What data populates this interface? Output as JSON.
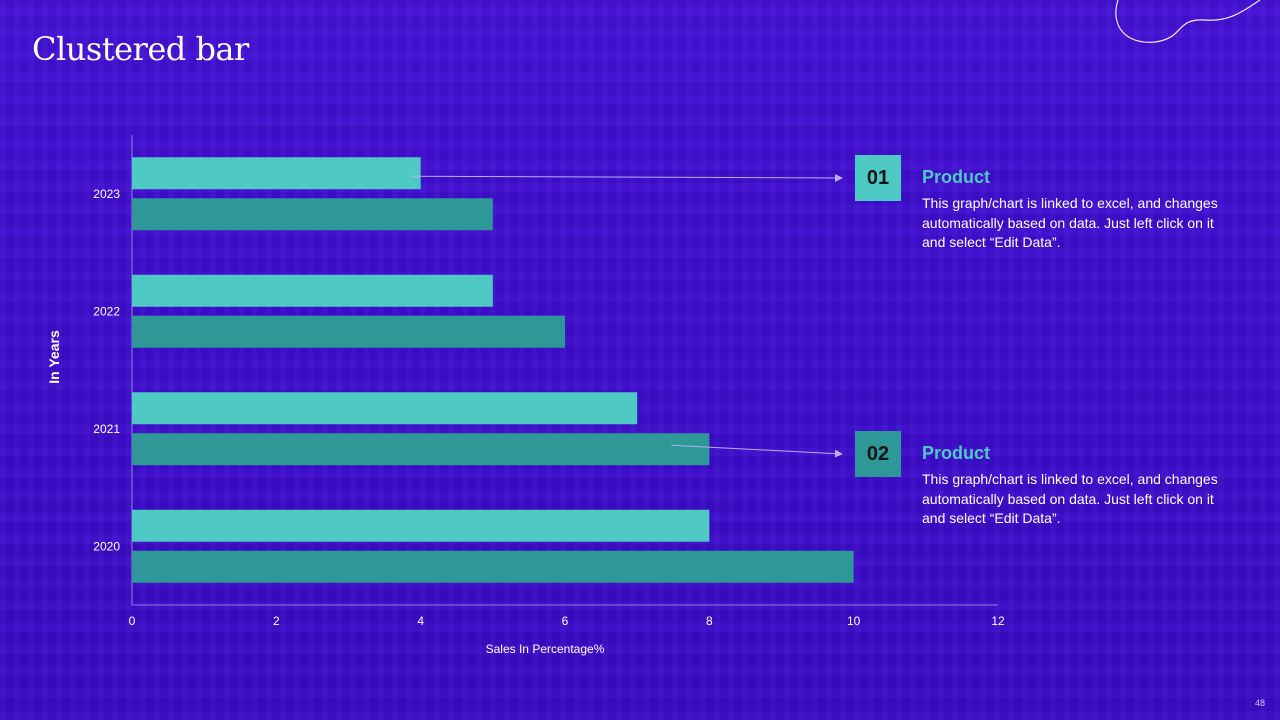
{
  "slide": {
    "title": "Clustered bar",
    "page_number": "48"
  },
  "colors": {
    "background": "#3d0ccf",
    "series_1": "#4ec9c3",
    "series_2": "#2e9898",
    "badge_1": "#4ec9c3",
    "badge_2": "#2e9898",
    "card_title": "#4ec9c3"
  },
  "chart_data": {
    "type": "bar",
    "orientation": "horizontal",
    "categories": [
      "2020",
      "2021",
      "2022",
      "2023"
    ],
    "series": [
      {
        "values": [
          8,
          7,
          5,
          4
        ]
      },
      {
        "values": [
          10,
          8,
          6,
          5
        ]
      }
    ],
    "xlabel": "Sales In Percentage%",
    "ylabel": "In Years",
    "xlim": [
      0,
      12
    ],
    "xticks": [
      "0",
      "2",
      "4",
      "6",
      "8",
      "10",
      "12"
    ],
    "grid": false
  },
  "callouts": [
    {
      "number": "01",
      "title": "Product",
      "description": "This graph/chart is linked to excel, and changes automatically based on data. Just left click on it and select “Edit Data”."
    },
    {
      "number": "02",
      "title": "Product",
      "description": "This graph/chart is linked to excel, and changes automatically based on data. Just left click on it and select “Edit Data”."
    }
  ]
}
